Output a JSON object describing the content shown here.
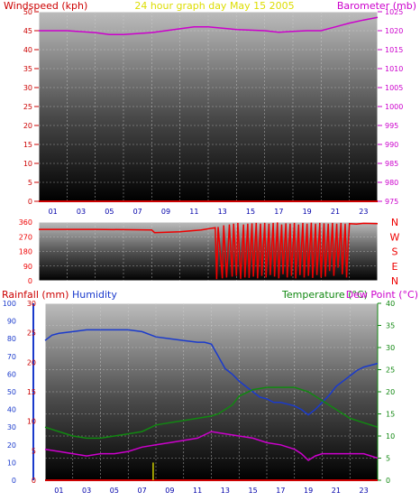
{
  "header": {
    "left_label": "Windspeed (kph)",
    "center_label": "24 hour graph day   May 15 2005",
    "right_label": "Barometer (mb)"
  },
  "lower_header": {
    "rain_label": "Rainfall (mm)",
    "humidity_label": "Humidity",
    "temp_label": "Temperature (°C)",
    "dew_label": "Dew Point (°C)"
  },
  "colors": {
    "windspeed": "#cc0000",
    "barometer": "#cc00cc",
    "direction": "#ee0000",
    "humidity": "#1a3acc",
    "temperature": "#118811",
    "dewpoint": "#cc00cc",
    "rain": "#cc0000",
    "rain_bar": "#cccc00",
    "hours": "#0000aa",
    "frame": "#ffffff"
  },
  "chart_data": [
    {
      "type": "line",
      "title": "24 hour graph day   May 15 2005",
      "hour_ticks": [
        "01",
        "03",
        "05",
        "07",
        "09",
        "11",
        "13",
        "15",
        "17",
        "19",
        "21",
        "23"
      ],
      "left_axis": {
        "label": "Windspeed (kph)",
        "ticks": [
          "0",
          "5",
          "10",
          "15",
          "20",
          "25",
          "30",
          "35",
          "40",
          "45",
          "50"
        ],
        "ylim": [
          0,
          50
        ]
      },
      "right_axis": {
        "label": "Barometer (mb)",
        "ticks": [
          "975",
          "980",
          "985",
          "990",
          "995",
          "1000",
          "1005",
          "1010",
          "1015",
          "1020",
          "1025"
        ],
        "ylim": [
          975,
          1025
        ]
      },
      "series": [
        {
          "name": "Windspeed (kph)",
          "axis": "left",
          "x": [
            0,
            24
          ],
          "y": [
            0,
            0
          ]
        },
        {
          "name": "Barometer (mb)",
          "axis": "right",
          "x": [
            0,
            2,
            4,
            5,
            6,
            8,
            10,
            11,
            12,
            14,
            16,
            17,
            18,
            19,
            20,
            21,
            22,
            23,
            24
          ],
          "y": [
            1020,
            1020,
            1019.5,
            1019,
            1019,
            1019.5,
            1020.5,
            1021,
            1021,
            1020.3,
            1020,
            1019.6,
            1019.8,
            1020,
            1020,
            1021,
            1022,
            1022.8,
            1023.5
          ]
        }
      ]
    },
    {
      "type": "line",
      "title": "",
      "hour_ticks": [],
      "left_axis": {
        "label": "",
        "ticks": [
          "0",
          "90",
          "180",
          "270",
          "360"
        ],
        "ylim": [
          0,
          360
        ]
      },
      "right_axis": {
        "label": "",
        "ticks": [
          "N",
          "W",
          "S",
          "E",
          "N"
        ]
      },
      "series": [
        {
          "name": "",
          "axis": "left",
          "x": [
            0,
            4,
            8,
            8.2,
            10,
            11.5,
            12.5,
            12.6,
            12.7,
            13,
            13.1,
            13.3,
            13.5,
            13.7,
            13.8,
            14.0,
            14.1,
            14.3,
            14.5,
            14.6,
            14.8,
            14.9,
            15.1,
            15.2,
            15.4,
            15.5,
            15.7,
            15.8,
            16.0,
            16.1,
            16.3,
            16.4,
            16.6,
            16.7,
            16.9,
            17.0,
            17.2,
            17.3,
            17.5,
            17.6,
            17.8,
            17.9,
            18.1,
            18.2,
            18.4,
            18.5,
            18.7,
            18.8,
            19.0,
            19.1,
            19.3,
            19.4,
            19.6,
            19.7,
            19.9,
            20.0,
            20.2,
            20.3,
            20.5,
            20.6,
            20.8,
            20.9,
            21.1,
            21.2,
            21.4,
            21.5,
            21.7,
            21.8,
            22.0,
            22.5,
            23.0,
            24
          ],
          "y": [
            315,
            315,
            312,
            295,
            300,
            312,
            325,
            10,
            330,
            15,
            340,
            20,
            345,
            25,
            350,
            30,
            355,
            12,
            345,
            20,
            350,
            18,
            352,
            25,
            355,
            15,
            350,
            30,
            355,
            20,
            350,
            35,
            355,
            25,
            358,
            15,
            345,
            40,
            352,
            20,
            350,
            30,
            355,
            15,
            345,
            35,
            355,
            20,
            350,
            30,
            356,
            18,
            350,
            35,
            355,
            20,
            352,
            25,
            350,
            60,
            355,
            30,
            350,
            80,
            355,
            40,
            350,
            20,
            350,
            348,
            352,
            350
          ]
        }
      ]
    },
    {
      "type": "line",
      "title": "",
      "hour_ticks": [
        "01",
        "03",
        "05",
        "07",
        "09",
        "11",
        "13",
        "15",
        "17",
        "19",
        "21",
        "23"
      ],
      "axes": [
        {
          "label": "Humidity",
          "ticks": [
            "0",
            "10",
            "20",
            "30",
            "40",
            "50",
            "60",
            "70",
            "80",
            "90",
            "100"
          ],
          "ylim": [
            0,
            100
          ]
        },
        {
          "label": "Rainfall (mm)",
          "ticks": [
            "0",
            "5",
            "10",
            "15",
            "20",
            "25",
            "30"
          ],
          "ylim": [
            0,
            30
          ]
        },
        {
          "label": "Temperature (°C)",
          "ticks": [
            "0",
            "5",
            "10",
            "15",
            "20",
            "25",
            "30",
            "35",
            "40"
          ],
          "ylim": [
            0,
            40
          ]
        }
      ],
      "series": [
        {
          "name": "Humidity",
          "axis": "humidity",
          "x": [
            0,
            0.5,
            1,
            2,
            3,
            4,
            5,
            6,
            7,
            8,
            9,
            10,
            11,
            11.5,
            12,
            12.5,
            13,
            13.5,
            14,
            14.5,
            15,
            15.5,
            16,
            16.5,
            17,
            17.5,
            18,
            18.5,
            19,
            19.5,
            20,
            20.5,
            21,
            21.5,
            22,
            22.5,
            23,
            23.5,
            24
          ],
          "y": [
            79,
            82,
            83,
            84,
            85,
            85,
            85,
            85,
            84,
            81,
            80,
            79,
            78,
            78,
            77,
            70,
            63,
            60,
            56,
            53,
            50,
            47,
            46,
            44,
            44,
            43,
            42,
            40,
            37,
            40,
            44,
            48,
            53,
            56,
            59,
            62,
            64,
            65,
            66
          ]
        },
        {
          "name": "Temperature (°C)",
          "axis": "temperature",
          "x": [
            0,
            1,
            2,
            3,
            4,
            5,
            6,
            7,
            8,
            9,
            10,
            11,
            12,
            12.5,
            13,
            13.5,
            14,
            15,
            16,
            17,
            18,
            19,
            20,
            21,
            22,
            23,
            24
          ],
          "y": [
            12,
            11,
            10,
            9.5,
            9.5,
            10,
            10.5,
            11,
            12.5,
            13,
            13.5,
            14,
            14.5,
            15,
            16,
            17,
            19,
            20.5,
            21,
            21,
            21,
            20,
            18,
            16,
            14,
            13,
            12
          ]
        },
        {
          "name": "Dew Point (°C)",
          "axis": "temperature",
          "x": [
            0,
            1,
            2,
            3,
            4,
            5,
            6,
            7,
            8,
            9,
            10,
            11,
            12,
            13,
            14,
            15,
            16,
            17,
            18,
            18.5,
            19,
            19.5,
            20,
            21,
            22,
            23,
            24
          ],
          "y": [
            7,
            6.5,
            6,
            5.5,
            6,
            6,
            6.5,
            7.5,
            8,
            8.5,
            9,
            9.5,
            11,
            10.5,
            10,
            9.5,
            8.5,
            8,
            7,
            6,
            4.5,
            5.5,
            6,
            6,
            6,
            6,
            5
          ]
        },
        {
          "name": "Rainfall (mm)",
          "axis": "rain",
          "x": [
            0,
            24
          ],
          "y": [
            0,
            0
          ]
        }
      ],
      "rain_events": [
        {
          "x": 7.8,
          "y": 3
        }
      ]
    }
  ]
}
